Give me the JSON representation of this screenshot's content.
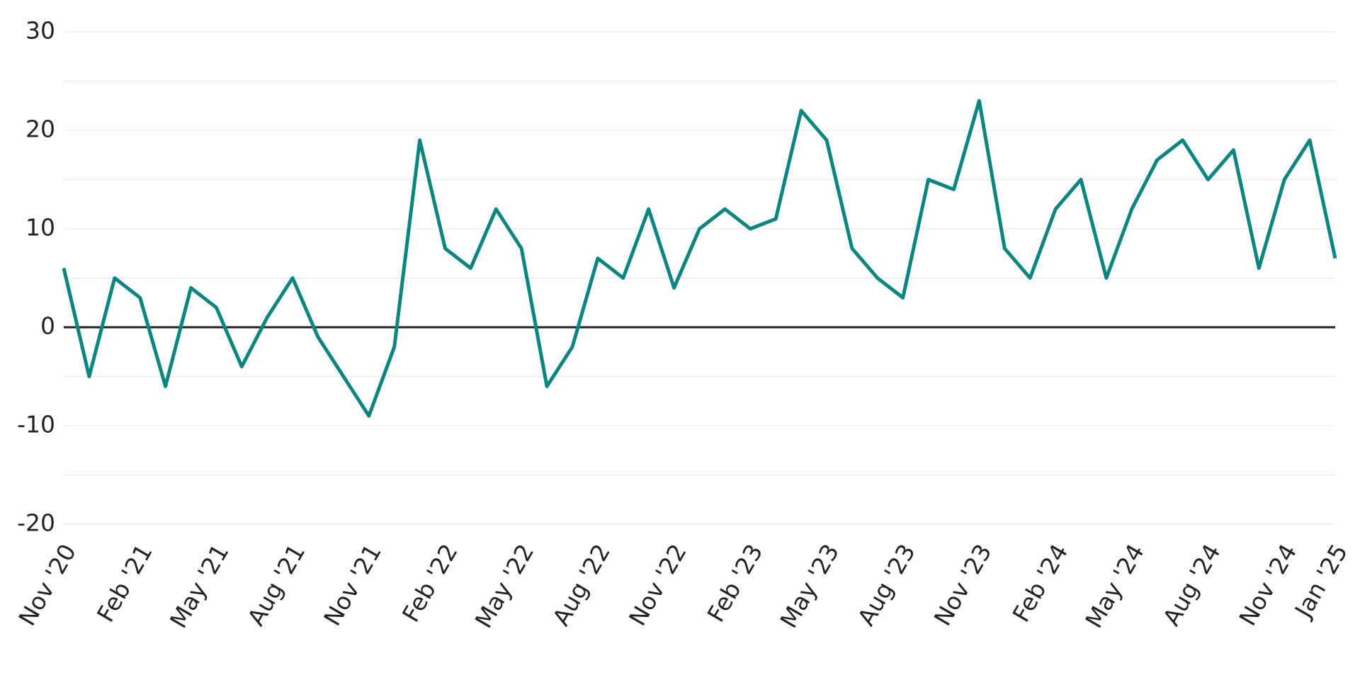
{
  "chart_data": {
    "type": "line",
    "x": [
      "2020-11",
      "2020-12",
      "2021-01",
      "2021-02",
      "2021-03",
      "2021-04",
      "2021-05",
      "2021-06",
      "2021-07",
      "2021-08",
      "2021-09",
      "2021-10",
      "2021-11",
      "2021-12",
      "2022-01",
      "2022-02",
      "2022-03",
      "2022-04",
      "2022-05",
      "2022-06",
      "2022-07",
      "2022-08",
      "2022-09",
      "2022-10",
      "2022-11",
      "2022-12",
      "2023-01",
      "2023-02",
      "2023-03",
      "2023-04",
      "2023-05",
      "2023-06",
      "2023-07",
      "2023-08",
      "2023-09",
      "2023-10",
      "2023-11",
      "2023-12",
      "2024-01",
      "2024-02",
      "2024-03",
      "2024-04",
      "2024-05",
      "2024-06",
      "2024-07",
      "2024-08",
      "2024-09",
      "2024-10",
      "2024-11",
      "2024-12",
      "2025-01"
    ],
    "series": [
      {
        "color": "#0b8580",
        "values": [
          6,
          -5,
          5,
          3,
          -6,
          4,
          2,
          -4,
          1,
          5,
          -1,
          -5,
          -9,
          -2,
          19,
          8,
          6,
          12,
          8,
          -6,
          -2,
          7,
          5,
          12,
          4,
          10,
          12,
          10,
          11,
          22,
          19,
          8,
          5,
          3,
          15,
          14,
          23,
          8,
          5,
          12,
          15,
          5,
          12,
          17,
          19,
          15,
          18,
          6,
          15,
          19,
          7
        ]
      }
    ],
    "xlim": [
      "2020-11",
      "2025-01"
    ],
    "xticks": [
      {
        "value": "2020-11",
        "label": "Nov '20"
      },
      {
        "value": "2021-02",
        "label": "Feb '21"
      },
      {
        "value": "2021-05",
        "label": "May '21"
      },
      {
        "value": "2021-08",
        "label": "Aug '21"
      },
      {
        "value": "2021-11",
        "label": "Nov '21"
      },
      {
        "value": "2022-02",
        "label": "Feb '22"
      },
      {
        "value": "2022-05",
        "label": "May '22"
      },
      {
        "value": "2022-08",
        "label": "Aug '22"
      },
      {
        "value": "2022-11",
        "label": "Nov '22"
      },
      {
        "value": "2023-02",
        "label": "Feb '23"
      },
      {
        "value": "2023-05",
        "label": "May '23"
      },
      {
        "value": "2023-08",
        "label": "Aug '23"
      },
      {
        "value": "2023-11",
        "label": "Nov '23"
      },
      {
        "value": "2024-02",
        "label": "Feb '24"
      },
      {
        "value": "2024-05",
        "label": "May '24"
      },
      {
        "value": "2024-08",
        "label": "Aug '24"
      },
      {
        "value": "2024-11",
        "label": "Nov '24"
      },
      {
        "value": "2025-01",
        "label": "Jan '25"
      }
    ],
    "ylim": [
      -20,
      30
    ],
    "yticks": [
      -20,
      -10,
      0,
      10,
      20,
      30
    ],
    "minor_yticks": [
      -15,
      -5,
      5,
      15,
      25
    ],
    "grid": true
  }
}
